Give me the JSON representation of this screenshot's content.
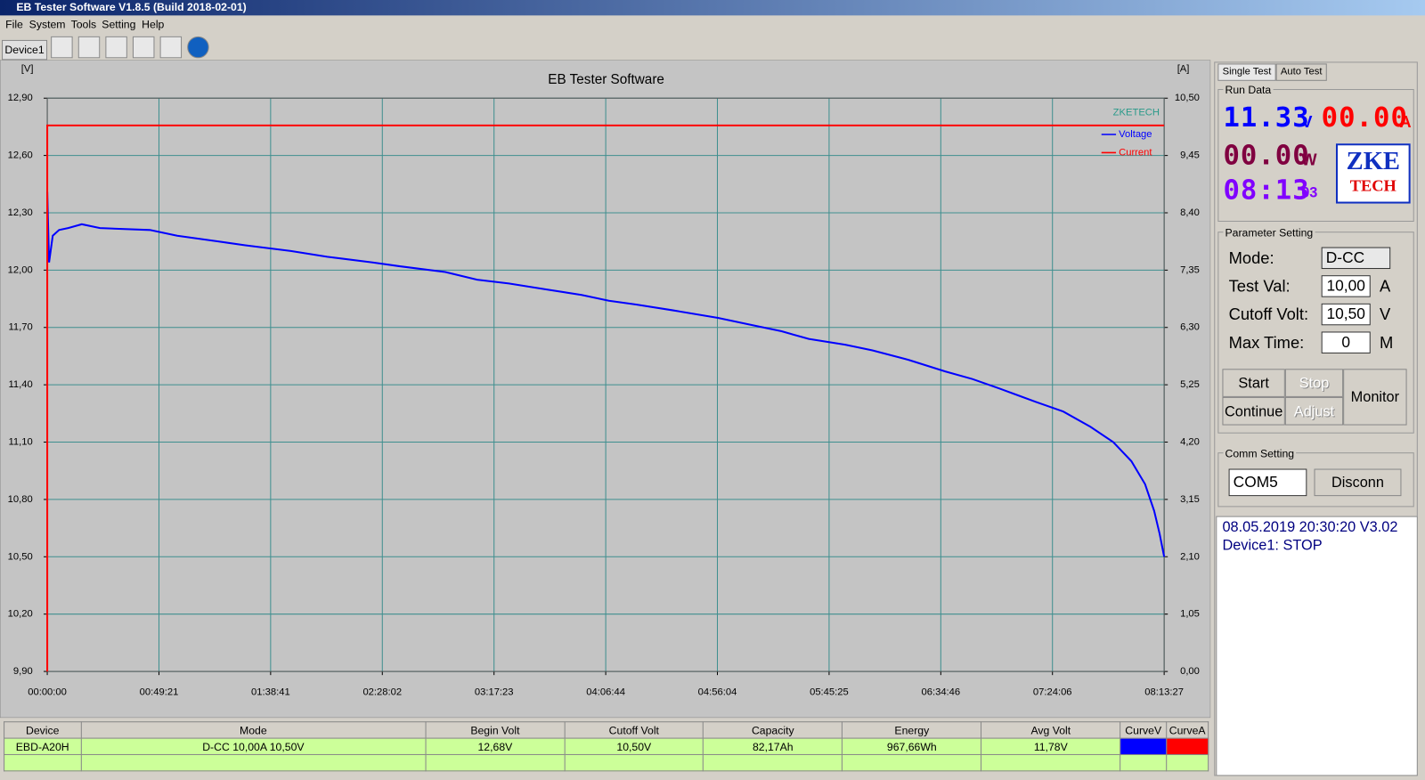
{
  "window_title": "EB Tester Software V1.8.5 (Build 2018-02-01)",
  "menu": [
    "File",
    "System",
    "Tools",
    "Setting",
    "Help"
  ],
  "device_tab": "Device1",
  "chart_data": {
    "type": "line",
    "title": "EB Tester Software",
    "watermark": "ZKETECH",
    "y_label": "[V]",
    "y2_label": "[A]",
    "xlim": [
      0,
      29607
    ],
    "xticks": [
      {
        "value": 0,
        "label": "00:00:00"
      },
      {
        "value": 2961,
        "label": "00:49:21"
      },
      {
        "value": 5921,
        "label": "01:38:41"
      },
      {
        "value": 8882,
        "label": "02:28:02"
      },
      {
        "value": 11843,
        "label": "03:17:23"
      },
      {
        "value": 14804,
        "label": "04:06:44"
      },
      {
        "value": 17764,
        "label": "04:56:04"
      },
      {
        "value": 20725,
        "label": "05:45:25"
      },
      {
        "value": 23686,
        "label": "06:34:46"
      },
      {
        "value": 26646,
        "label": "07:24:06"
      },
      {
        "value": 29607,
        "label": "08:13:27"
      }
    ],
    "ylim": [
      9.9,
      12.9
    ],
    "yticks": [
      {
        "value": 9.9,
        "label": "9,90"
      },
      {
        "value": 10.2,
        "label": "10,20"
      },
      {
        "value": 10.5,
        "label": "10,50"
      },
      {
        "value": 10.8,
        "label": "10,80"
      },
      {
        "value": 11.1,
        "label": "11,10"
      },
      {
        "value": 11.4,
        "label": "11,40"
      },
      {
        "value": 11.7,
        "label": "11,70"
      },
      {
        "value": 12.0,
        "label": "12,00"
      },
      {
        "value": 12.3,
        "label": "12,30"
      },
      {
        "value": 12.6,
        "label": "12,60"
      },
      {
        "value": 12.9,
        "label": "12,90"
      }
    ],
    "y2lim": [
      0,
      10.5
    ],
    "y2ticks": [
      {
        "value": 0,
        "label": "0,00"
      },
      {
        "value": 1.05,
        "label": "1,05"
      },
      {
        "value": 2.1,
        "label": "2,10"
      },
      {
        "value": 3.15,
        "label": "3,15"
      },
      {
        "value": 4.2,
        "label": "4,20"
      },
      {
        "value": 5.25,
        "label": "5,25"
      },
      {
        "value": 6.3,
        "label": "6,30"
      },
      {
        "value": 7.35,
        "label": "7,35"
      },
      {
        "value": 8.4,
        "label": "8,40"
      },
      {
        "value": 9.45,
        "label": "9,45"
      },
      {
        "value": 10.5,
        "label": "10,50"
      }
    ],
    "grid": true,
    "series": [
      {
        "name": "Voltage",
        "color": "#0000ff",
        "axis": "y",
        "x": [
          0,
          48,
          145,
          313,
          554,
          915,
          1397,
          2722,
          3445,
          4529,
          5252,
          6456,
          7420,
          8624,
          9347,
          10551,
          11394,
          12237,
          13201,
          14164,
          14887,
          15609,
          16573,
          17778,
          18742,
          19465,
          20187,
          21151,
          21874,
          22837,
          23801,
          24524,
          25247,
          26210,
          26933,
          27655,
          28258,
          28739,
          29101,
          29342,
          29487,
          29607
        ],
        "values": [
          12.41,
          12.04,
          12.18,
          12.21,
          12.22,
          12.24,
          12.22,
          12.21,
          12.18,
          12.15,
          12.13,
          12.1,
          12.07,
          12.04,
          12.02,
          11.99,
          11.95,
          11.93,
          11.9,
          11.87,
          11.84,
          11.82,
          11.79,
          11.75,
          11.71,
          11.68,
          11.64,
          11.61,
          11.58,
          11.53,
          11.47,
          11.43,
          11.38,
          11.31,
          11.26,
          11.18,
          11.1,
          11.0,
          10.88,
          10.74,
          10.62,
          10.5
        ]
      },
      {
        "name": "Current",
        "color": "#ff0000",
        "axis": "y2",
        "x": [
          0,
          0,
          29607
        ],
        "values": [
          0,
          10,
          10
        ]
      }
    ]
  },
  "side": {
    "tabs": [
      "Single Test",
      "Auto Test"
    ],
    "run_data_title": "Run Data",
    "run_data": [
      {
        "value": "11.33",
        "unit": "V",
        "color": "#0000ff"
      },
      {
        "value": "00.00",
        "unit": "A",
        "color": "#ff0000"
      },
      {
        "value": "00.00",
        "unit": "W",
        "color": "#800040"
      },
      {
        "value": "08:13",
        "unit": "03",
        "color": "#8000ff"
      }
    ],
    "logo": [
      "ZKE",
      "TECH"
    ],
    "param_title": "Parameter Setting",
    "params": [
      {
        "label": "Mode:",
        "value": "D-CC",
        "unit": ""
      },
      {
        "label": "Test Val:",
        "value": "10,00",
        "unit": "A"
      },
      {
        "label": "Cutoff Volt:",
        "value": "10,50",
        "unit": "V"
      },
      {
        "label": "Max Time:",
        "value": "0",
        "unit": "M"
      }
    ],
    "buttons": [
      "Start",
      "Stop",
      "Continue",
      "Adjust",
      "Monitor"
    ],
    "comm_title": "Comm Setting",
    "port": "COM5",
    "disconnect": "Disconn",
    "log": [
      "08.05.2019 20:30:20  V3.02",
      "Device1: STOP"
    ]
  },
  "table": {
    "headers": [
      "Device",
      "Mode",
      "Begin Volt",
      "Cutoff Volt",
      "Capacity",
      "Energy",
      "Avg Volt",
      "CurveV",
      "CurveA"
    ],
    "rows": [
      [
        "EBD-A20H",
        "D-CC  10,00A  10,50V",
        "12,68V",
        "10,50V",
        "82,17Ah",
        "967,66Wh",
        "11,78V"
      ]
    ]
  }
}
